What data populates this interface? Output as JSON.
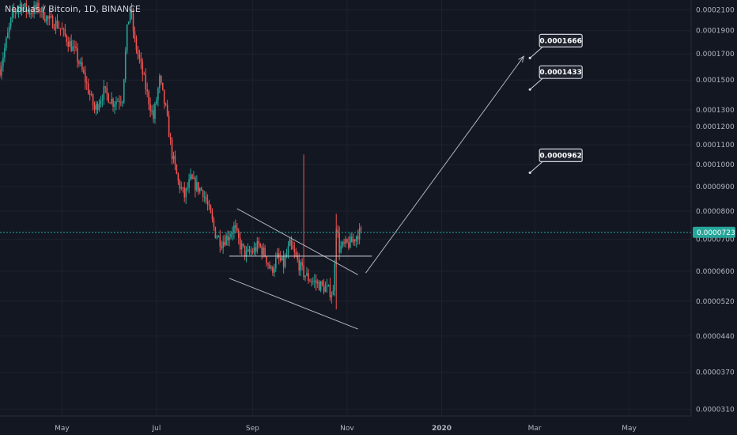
{
  "header": {
    "symbol": "Nebulas / Bitcoin",
    "interval": "1D",
    "exchange": "BINANCE",
    "separator": ", "
  },
  "chart_data": {
    "type": "candlestick",
    "title": "Nebulas / Bitcoin, 1D, BINANCE",
    "y_scale": "log",
    "y_range": [
      3e-05,
      0.00022
    ],
    "y_ticks": [
      "0.0002100",
      "0.0001900",
      "0.0001700",
      "0.0001500",
      "0.0001300",
      "0.0001200",
      "0.0001100",
      "0.0001000",
      "0.0000900",
      "0.0000800",
      "0.0000700",
      "0.0000600",
      "0.0000520",
      "0.0000440",
      "0.0000370",
      "0.0000310"
    ],
    "x_ticks": [
      "May",
      "Jul",
      "Sep",
      "Nov",
      "2020",
      "Mar",
      "May"
    ],
    "x_tick_bold": [
      "2020"
    ],
    "x_range": [
      "2019-03-22",
      "2020-06-10"
    ],
    "current_price": "0.0000723",
    "colors": {
      "up": "#26a69a",
      "down": "#ef5350",
      "background": "#131722",
      "grid": "#1e222d",
      "price_line": "#26a69a",
      "annotation": "#b2b5be"
    },
    "price_path": [
      [
        "2019-03-22",
        0.000158
      ],
      [
        "2019-03-26",
        0.00018
      ],
      [
        "2019-03-30",
        0.000205
      ],
      [
        "2019-04-04",
        0.000215
      ],
      [
        "2019-04-10",
        0.000208
      ],
      [
        "2019-04-16",
        0.000212
      ],
      [
        "2019-04-22",
        0.0002
      ],
      [
        "2019-04-28",
        0.000196
      ],
      [
        "2019-05-04",
        0.000183
      ],
      [
        "2019-05-10",
        0.00017
      ],
      [
        "2019-05-16",
        0.00015
      ],
      [
        "2019-05-22",
        0.00013
      ],
      [
        "2019-05-28",
        0.000142
      ],
      [
        "2019-06-03",
        0.000135
      ],
      [
        "2019-06-09",
        0.000138
      ],
      [
        "2019-06-12",
        0.00019
      ],
      [
        "2019-06-14",
        0.000212
      ],
      [
        "2019-06-17",
        0.00018
      ],
      [
        "2019-06-21",
        0.00016
      ],
      [
        "2019-06-25",
        0.00014
      ],
      [
        "2019-06-29",
        0.000125
      ],
      [
        "2019-07-03",
        0.00015
      ],
      [
        "2019-07-07",
        0.00013
      ],
      [
        "2019-07-11",
        0.000105
      ],
      [
        "2019-07-15",
        9.2e-05
      ],
      [
        "2019-07-19",
        8.6e-05
      ],
      [
        "2019-07-23",
        9.3e-05
      ],
      [
        "2019-07-27",
        9e-05
      ],
      [
        "2019-07-31",
        8.8e-05
      ],
      [
        "2019-08-04",
        8e-05
      ],
      [
        "2019-08-08",
        7.2e-05
      ],
      [
        "2019-08-12",
        6.9e-05
      ],
      [
        "2019-08-16",
        7.1e-05
      ],
      [
        "2019-08-20",
        7.4e-05
      ],
      [
        "2019-08-24",
        6.8e-05
      ],
      [
        "2019-08-28",
        6.5e-05
      ],
      [
        "2019-09-01",
        6.6e-05
      ],
      [
        "2019-09-05",
        6.8e-05
      ],
      [
        "2019-09-09",
        6.5e-05
      ],
      [
        "2019-09-13",
        6e-05
      ],
      [
        "2019-09-17",
        6.4e-05
      ],
      [
        "2019-09-21",
        6.2e-05
      ],
      [
        "2019-09-25",
        6.8e-05
      ],
      [
        "2019-09-29",
        6.4e-05
      ],
      [
        "2019-10-03",
        6e-05
      ],
      [
        "2019-10-07",
        5.8e-05
      ],
      [
        "2019-10-11",
        5.7e-05
      ],
      [
        "2019-10-15",
        5.6e-05
      ],
      [
        "2019-10-19",
        5.5e-05
      ],
      [
        "2019-10-23",
        5.4e-05
      ],
      [
        "2019-10-25",
        7.5e-05
      ],
      [
        "2019-10-27",
        6.7e-05
      ],
      [
        "2019-10-31",
        6.8e-05
      ],
      [
        "2019-11-04",
        6.9e-05
      ],
      [
        "2019-11-08",
        7.2e-05
      ],
      [
        "2019-11-10",
        7.23e-05
      ]
    ],
    "spikes": [
      {
        "date": "2019-10-04",
        "low": 5.8e-05,
        "high": 0.000105
      },
      {
        "date": "2019-10-25",
        "low": 5e-05,
        "high": 7.9e-05
      }
    ],
    "annotations": [
      {
        "label": "0.0001666",
        "anchor": [
          "2020-02-27",
          0.0001666
        ]
      },
      {
        "label": "0.0001433",
        "anchor": [
          "2020-02-27",
          0.0001433
        ]
      },
      {
        "label": "0.0000962",
        "anchor": [
          "2020-02-27",
          9.62e-05
        ]
      }
    ],
    "trendlines": [
      {
        "from": [
          "2019-08-22",
          8.1e-05
        ],
        "to": [
          "2019-11-08",
          5.9e-05
        ]
      },
      {
        "from": [
          "2019-08-17",
          5.8e-05
        ],
        "to": [
          "2019-11-08",
          4.55e-05
        ]
      },
      {
        "from": [
          "2019-08-17",
          6.45e-05
        ],
        "to": [
          "2019-11-17",
          6.45e-05
        ]
      },
      {
        "from": [
          "2019-11-13",
          5.95e-05
        ],
        "to": [
          "2020-02-23",
          0.000168
        ]
      }
    ]
  }
}
